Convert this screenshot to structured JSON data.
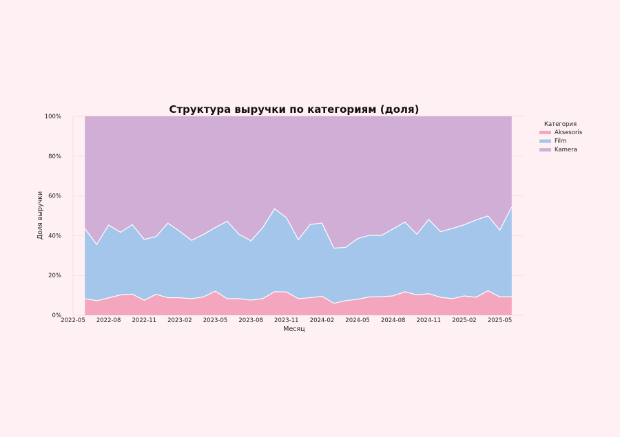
{
  "chart_data": {
    "type": "area",
    "stacked": true,
    "normalized": true,
    "title": "Структура выручки по категориям (доля)",
    "xlabel": "Месяц",
    "ylabel": "Доля выручки",
    "ylim": [
      0,
      1
    ],
    "xlim": [
      "2022-05",
      "2025-07"
    ],
    "y_ticks": [
      {
        "value": 0.0,
        "label": "0%"
      },
      {
        "value": 0.2,
        "label": "20%"
      },
      {
        "value": 0.4,
        "label": "40%"
      },
      {
        "value": 0.6,
        "label": "60%"
      },
      {
        "value": 0.8,
        "label": "80%"
      },
      {
        "value": 1.0,
        "label": "100%"
      }
    ],
    "x_ticks": [
      "2022-05",
      "2022-08",
      "2022-11",
      "2023-02",
      "2023-05",
      "2023-08",
      "2023-11",
      "2024-02",
      "2024-05",
      "2024-08",
      "2024-11",
      "2025-02",
      "2025-05"
    ],
    "grid": true,
    "legend": {
      "title": "Категория",
      "position": "right"
    },
    "x": [
      "2022-06",
      "2022-07",
      "2022-08",
      "2022-09",
      "2022-10",
      "2022-11",
      "2022-12",
      "2023-01",
      "2023-02",
      "2023-03",
      "2023-04",
      "2023-05",
      "2023-06",
      "2023-07",
      "2023-08",
      "2023-09",
      "2023-10",
      "2023-11",
      "2023-12",
      "2024-01",
      "2024-02",
      "2024-03",
      "2024-04",
      "2024-05",
      "2024-06",
      "2024-07",
      "2024-08",
      "2024-09",
      "2024-10",
      "2024-11",
      "2024-12",
      "2025-01",
      "2025-02",
      "2025-03",
      "2025-04",
      "2025-05",
      "2025-06"
    ],
    "series": [
      {
        "name": "Aksesoris",
        "color": "#f4a6bf",
        "values": [
          0.083,
          0.073,
          0.087,
          0.102,
          0.106,
          0.075,
          0.105,
          0.088,
          0.088,
          0.083,
          0.092,
          0.121,
          0.083,
          0.083,
          0.076,
          0.083,
          0.118,
          0.117,
          0.083,
          0.088,
          0.095,
          0.06,
          0.073,
          0.08,
          0.092,
          0.093,
          0.097,
          0.118,
          0.102,
          0.108,
          0.09,
          0.083,
          0.097,
          0.09,
          0.123,
          0.092,
          0.093
        ]
      },
      {
        "name": "Film",
        "color": "#a4c6ea",
        "values": [
          0.352,
          0.282,
          0.366,
          0.315,
          0.349,
          0.306,
          0.29,
          0.375,
          0.334,
          0.293,
          0.314,
          0.32,
          0.389,
          0.324,
          0.298,
          0.357,
          0.417,
          0.373,
          0.297,
          0.368,
          0.368,
          0.277,
          0.268,
          0.305,
          0.31,
          0.308,
          0.337,
          0.35,
          0.305,
          0.373,
          0.33,
          0.353,
          0.358,
          0.389,
          0.376,
          0.336,
          0.451
        ]
      },
      {
        "name": "Kamera",
        "color": "#d1aed6",
        "values": [
          0.565,
          0.645,
          0.547,
          0.583,
          0.545,
          0.619,
          0.605,
          0.537,
          0.578,
          0.624,
          0.594,
          0.559,
          0.528,
          0.593,
          0.626,
          0.56,
          0.465,
          0.51,
          0.62,
          0.544,
          0.537,
          0.663,
          0.659,
          0.615,
          0.598,
          0.599,
          0.566,
          0.532,
          0.593,
          0.519,
          0.58,
          0.564,
          0.545,
          0.521,
          0.501,
          0.572,
          0.456
        ]
      }
    ]
  }
}
